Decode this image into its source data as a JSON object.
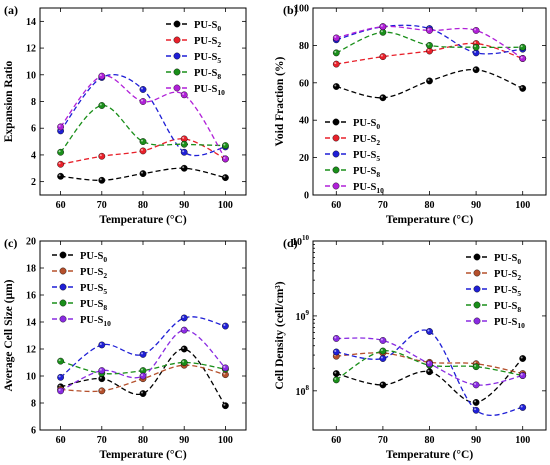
{
  "chart_data": [
    {
      "panel": "(a)",
      "type": "scatter",
      "xlabel": "Temperature (°C)",
      "ylabel": "Expansion Ratio",
      "xlim": [
        55,
        105
      ],
      "ylim": [
        1,
        15
      ],
      "x_ticks": [
        60,
        70,
        80,
        90,
        100
      ],
      "y_ticks": [
        2,
        4,
        6,
        8,
        10,
        12,
        14
      ],
      "y_scale": "linear",
      "legend_position": "top-right",
      "x": [
        60,
        70,
        80,
        90,
        100
      ],
      "series": [
        {
          "name": "PU-S0",
          "label_base": "PU-S",
          "label_sub": "0",
          "color": "#000000",
          "values": [
            2.4,
            2.1,
            2.6,
            3.0,
            2.3
          ]
        },
        {
          "name": "PU-S2",
          "label_base": "PU-S",
          "label_sub": "2",
          "color": "#e8212b",
          "values": [
            3.3,
            3.9,
            4.3,
            5.2,
            3.7
          ]
        },
        {
          "name": "PU-S5",
          "label_base": "PU-S",
          "label_sub": "5",
          "color": "#1f1fd6",
          "values": [
            5.8,
            9.8,
            8.9,
            4.2,
            4.6
          ]
        },
        {
          "name": "PU-S8",
          "label_base": "PU-S",
          "label_sub": "8",
          "color": "#1a8f1a",
          "values": [
            4.2,
            7.7,
            5.0,
            4.8,
            4.7
          ]
        },
        {
          "name": "PU-S10",
          "label_base": "PU-S",
          "label_sub": "10",
          "color": "#b020d8",
          "values": [
            6.1,
            9.9,
            8.0,
            8.5,
            3.7
          ]
        }
      ]
    },
    {
      "panel": "(b)",
      "type": "scatter",
      "xlabel": "Temperature (°C)",
      "ylabel": "Void Fraction (%)",
      "xlim": [
        55,
        105
      ],
      "ylim": [
        0,
        100
      ],
      "x_ticks": [
        60,
        70,
        80,
        90,
        100
      ],
      "y_ticks": [
        0,
        20,
        40,
        60,
        80,
        100
      ],
      "y_scale": "linear",
      "legend_position": "bottom-left",
      "x": [
        60,
        70,
        80,
        90,
        100
      ],
      "series": [
        {
          "name": "PU-S0",
          "label_base": "PU-S",
          "label_sub": "0",
          "color": "#000000",
          "values": [
            58,
            52,
            61,
            67,
            57
          ]
        },
        {
          "name": "PU-S2",
          "label_base": "PU-S",
          "label_sub": "2",
          "color": "#e8212b",
          "values": [
            70,
            74,
            77,
            81,
            73
          ]
        },
        {
          "name": "PU-S5",
          "label_base": "PU-S",
          "label_sub": "5",
          "color": "#1f1fd6",
          "values": [
            83,
            90,
            89,
            76,
            78
          ]
        },
        {
          "name": "PU-S8",
          "label_base": "PU-S",
          "label_sub": "8",
          "color": "#1a8f1a",
          "values": [
            76,
            87,
            80,
            79,
            79
          ]
        },
        {
          "name": "PU-S10",
          "label_base": "PU-S",
          "label_sub": "10",
          "color": "#b020d8",
          "values": [
            84,
            90,
            88,
            88,
            73
          ]
        }
      ]
    },
    {
      "panel": "(c)",
      "type": "scatter",
      "xlabel": "Temperature (°C)",
      "ylabel": "Average Cell Size (μm)",
      "xlim": [
        55,
        105
      ],
      "ylim": [
        6,
        20
      ],
      "x_ticks": [
        60,
        70,
        80,
        90,
        100
      ],
      "y_ticks": [
        6,
        8,
        10,
        12,
        14,
        16,
        18,
        20
      ],
      "y_scale": "linear",
      "legend_position": "top-left",
      "x": [
        60,
        70,
        80,
        90,
        100
      ],
      "series": [
        {
          "name": "PU-S0",
          "label_base": "PU-S",
          "label_sub": "0",
          "color": "#000000",
          "values": [
            9.2,
            9.8,
            8.7,
            12.0,
            7.8
          ]
        },
        {
          "name": "PU-S2",
          "label_base": "PU-S",
          "label_sub": "2",
          "color": "#b5502c",
          "values": [
            9.0,
            8.9,
            9.8,
            10.8,
            10.1
          ]
        },
        {
          "name": "PU-S5",
          "label_base": "PU-S",
          "label_sub": "5",
          "color": "#1f1fd6",
          "values": [
            9.9,
            12.3,
            11.6,
            14.3,
            13.7
          ]
        },
        {
          "name": "PU-S8",
          "label_base": "PU-S",
          "label_sub": "8",
          "color": "#1a8f1a",
          "values": [
            11.1,
            10.2,
            10.4,
            11.0,
            10.5
          ]
        },
        {
          "name": "PU-S10",
          "label_base": "PU-S",
          "label_sub": "10",
          "color": "#8a2be2",
          "values": [
            8.9,
            10.4,
            10.0,
            13.4,
            10.6
          ]
        }
      ]
    },
    {
      "panel": "(d)",
      "type": "scatter",
      "xlabel": "Temperature (°C)",
      "ylabel": "Cell Density (cell/cm³)",
      "xlim": [
        55,
        105
      ],
      "ylim": [
        30000000,
        10000000000
      ],
      "x_ticks": [
        60,
        70,
        80,
        90,
        100
      ],
      "y_ticks": [
        100000000,
        1000000000,
        10000000000
      ],
      "y_tick_labels": [
        {
          "base": "10",
          "exp": "8"
        },
        {
          "base": "10",
          "exp": "9"
        },
        {
          "base": "10",
          "exp": "10"
        }
      ],
      "y_scale": "log",
      "legend_position": "top-right",
      "x": [
        60,
        70,
        80,
        90,
        100
      ],
      "series": [
        {
          "name": "PU-S0",
          "label_base": "PU-S",
          "label_sub": "0",
          "color": "#000000",
          "values": [
            170000000,
            120000000,
            180000000,
            70000000,
            270000000
          ]
        },
        {
          "name": "PU-S2",
          "label_base": "PU-S",
          "label_sub": "2",
          "color": "#b5502c",
          "values": [
            290000000,
            320000000,
            240000000,
            230000000,
            170000000
          ]
        },
        {
          "name": "PU-S5",
          "label_base": "PU-S",
          "label_sub": "5",
          "color": "#1f1fd6",
          "values": [
            330000000,
            270000000,
            620000000,
            55000000,
            60000000
          ]
        },
        {
          "name": "PU-S8",
          "label_base": "PU-S",
          "label_sub": "8",
          "color": "#1a8f1a",
          "values": [
            140000000,
            340000000,
            220000000,
            210000000,
            160000000
          ]
        },
        {
          "name": "PU-S10",
          "label_base": "PU-S",
          "label_sub": "10",
          "color": "#8a2be2",
          "values": [
            500000000,
            470000000,
            230000000,
            120000000,
            160000000
          ]
        }
      ]
    }
  ]
}
